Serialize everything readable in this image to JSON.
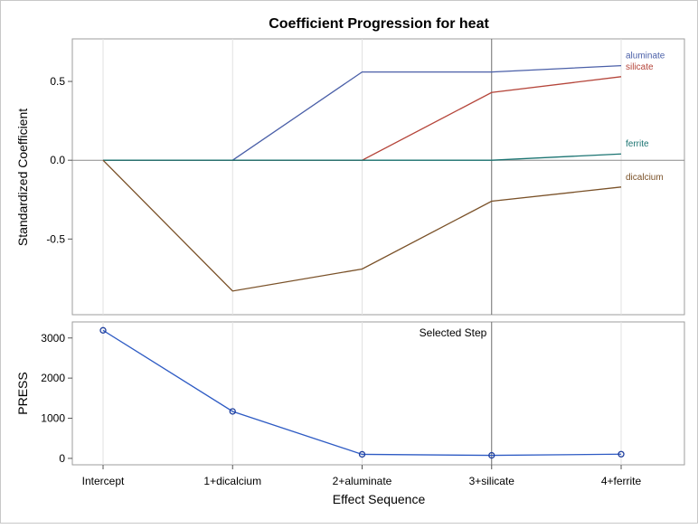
{
  "chart_data": [
    {
      "type": "line",
      "panel": "coefficients",
      "title": "Coefficient Progression for heat",
      "ylabel": "Standardized Coefficient",
      "ylim": [
        -0.98,
        0.77
      ],
      "yticks": [
        0.5,
        0.0,
        -0.5
      ],
      "ytick_labels": [
        "0.5",
        "0.0",
        "-0.5"
      ],
      "categories": [
        "Intercept",
        "1+dicalcium",
        "2+aluminate",
        "3+silicate",
        "4+ferrite"
      ],
      "series": [
        {
          "name": "aluminate",
          "color": "#4a5fa8",
          "values": [
            0,
            0,
            0.56,
            0.56,
            0.6
          ]
        },
        {
          "name": "silicate",
          "color": "#b5453a",
          "values": [
            0,
            0,
            0,
            0.43,
            0.53
          ]
        },
        {
          "name": "ferrite",
          "color": "#1b7472",
          "values": [
            0,
            0,
            0,
            0,
            0.04
          ]
        },
        {
          "name": "dicalcium",
          "color": "#7a5128",
          "values": [
            0,
            -0.83,
            -0.69,
            -0.26,
            -0.17
          ]
        }
      ],
      "selected_step": "3+silicate",
      "grid": true
    },
    {
      "type": "line",
      "panel": "press",
      "ylabel": "PRESS",
      "xlabel": "Effect Sequence",
      "ylim": [
        -160,
        3400
      ],
      "yticks": [
        0,
        1000,
        2000,
        3000
      ],
      "ytick_labels": [
        "0",
        "1000",
        "2000",
        "3000"
      ],
      "categories": [
        "Intercept",
        "1+dicalcium",
        "2+aluminate",
        "3+silicate",
        "4+ferrite"
      ],
      "series": [
        {
          "name": "PRESS",
          "color": "#2e5bc4",
          "values": [
            3190,
            1170,
            100,
            75,
            105
          ]
        }
      ],
      "selected_step": "3+silicate",
      "selected_step_label": "Selected Step",
      "grid": true
    }
  ]
}
